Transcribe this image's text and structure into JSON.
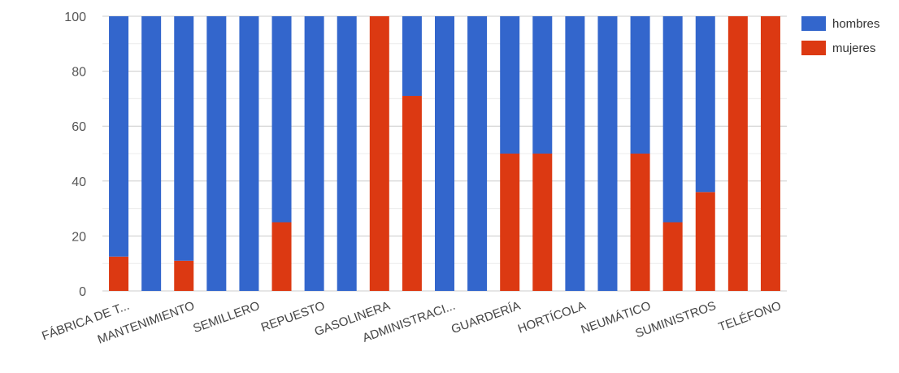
{
  "chart_data": {
    "type": "bar",
    "stacked": true,
    "categories": [
      "FÁBRICA DE T...",
      "",
      "MANTENIMIENTO",
      "",
      "SEMILLERO",
      "",
      "REPUESTO",
      "",
      "GASOLINERA",
      "",
      "ADMINISTRACI...",
      "",
      "GUARDERÍA",
      "",
      "HORTÍCOLA",
      "",
      "NEUMÁTICO",
      "",
      "SUMINISTROS",
      "",
      "TELÉFONO"
    ],
    "series": [
      {
        "name": "mujeres",
        "color": "#dc3912",
        "values": [
          12.5,
          0,
          11,
          0,
          0,
          25,
          0,
          0,
          100,
          71,
          0,
          0,
          50,
          50,
          0,
          0,
          50,
          25,
          36,
          100,
          100
        ]
      },
      {
        "name": "hombres",
        "color": "#3366cc",
        "values": [
          87.5,
          100,
          89,
          100,
          100,
          75,
          100,
          100,
          0,
          29,
          100,
          100,
          50,
          50,
          100,
          100,
          50,
          75,
          64,
          0,
          0
        ]
      }
    ],
    "y_ticks": [
      "0",
      "20",
      "40",
      "60",
      "80",
      "100"
    ],
    "ylim": [
      0,
      100
    ],
    "legend_position": "right",
    "legend": [
      "hombres",
      "mujeres"
    ],
    "grid": true
  }
}
